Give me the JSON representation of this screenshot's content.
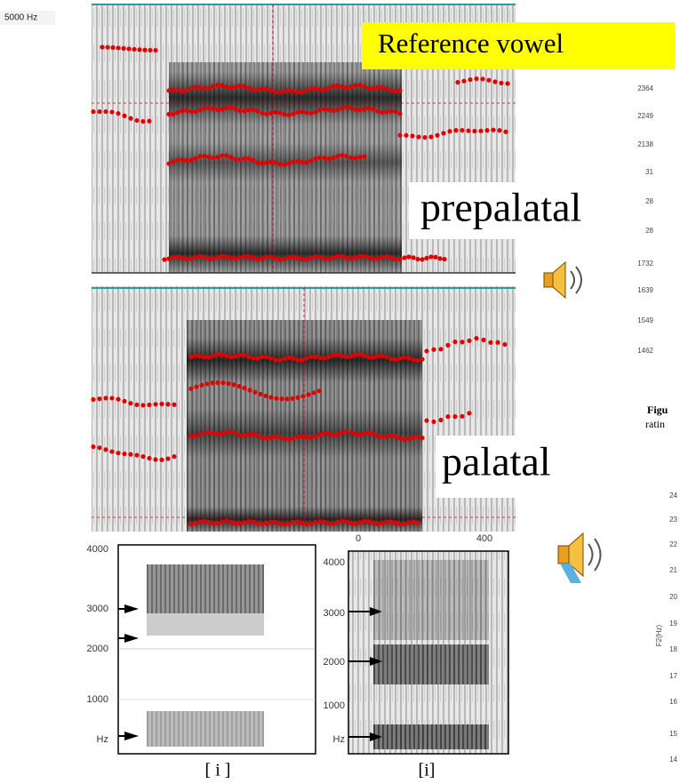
{
  "top_spectrogram": {
    "freq_label": "5000 Hz"
  },
  "labels": {
    "reference": "Reference vowel",
    "prepalatal": "prepalatal",
    "palatal": "palatal"
  },
  "right_figure_top": {
    "ticks": [
      "2364",
      "2249",
      "2138",
      "31",
      "28",
      "28",
      "1732",
      "1639",
      "1549",
      "1462"
    ],
    "caption": [
      "Figu",
      "ratin"
    ]
  },
  "right_figure_bottom": {
    "ticks": [
      "24",
      "23",
      "22",
      "21",
      "20",
      "19",
      "18",
      "17",
      "16",
      "15",
      "14"
    ],
    "axis_label": "F2(Hz)"
  },
  "left_spectrogram": {
    "ticks": [
      "4000",
      "3000",
      "2000",
      "1000",
      "Hz"
    ],
    "caption": "[ i ]"
  },
  "right_spectrogram": {
    "time_ticks": [
      "0",
      "400"
    ],
    "ticks": [
      "4000",
      "3000",
      "2000",
      "1000",
      "Hz"
    ],
    "caption": "[i]"
  }
}
